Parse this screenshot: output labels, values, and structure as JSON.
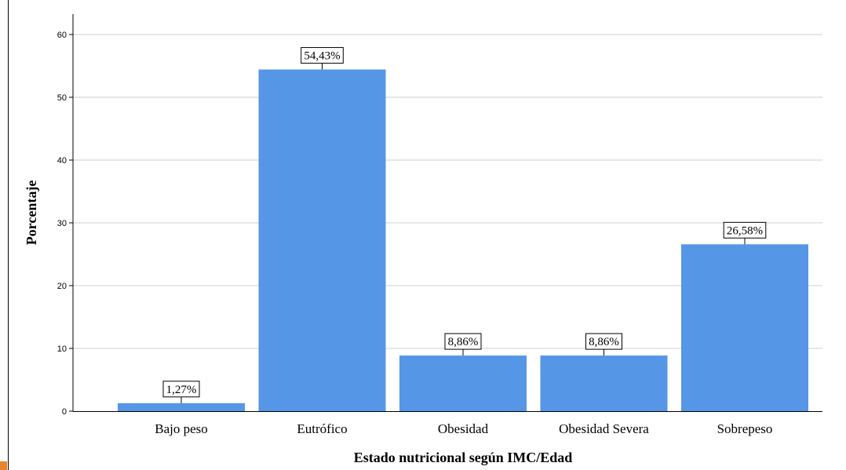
{
  "chart_data": {
    "type": "bar",
    "categories": [
      "Bajo peso",
      "Eutrófico",
      "Obesidad",
      "Obesidad Severa",
      "Sobrepeso"
    ],
    "values": [
      1.27,
      54.43,
      8.86,
      8.86,
      26.58
    ],
    "data_labels": [
      "1,27%",
      "54,43%",
      "8,86%",
      "8,86%",
      "26,58%"
    ],
    "title": "",
    "xlabel": "Estado nutricional según IMC/Edad",
    "ylabel": "Porcentaje",
    "ylim": [
      0,
      60
    ],
    "yticks": [
      0,
      10,
      20,
      30,
      40,
      50,
      60
    ],
    "grid": true,
    "bar_color": "#5596e6"
  }
}
